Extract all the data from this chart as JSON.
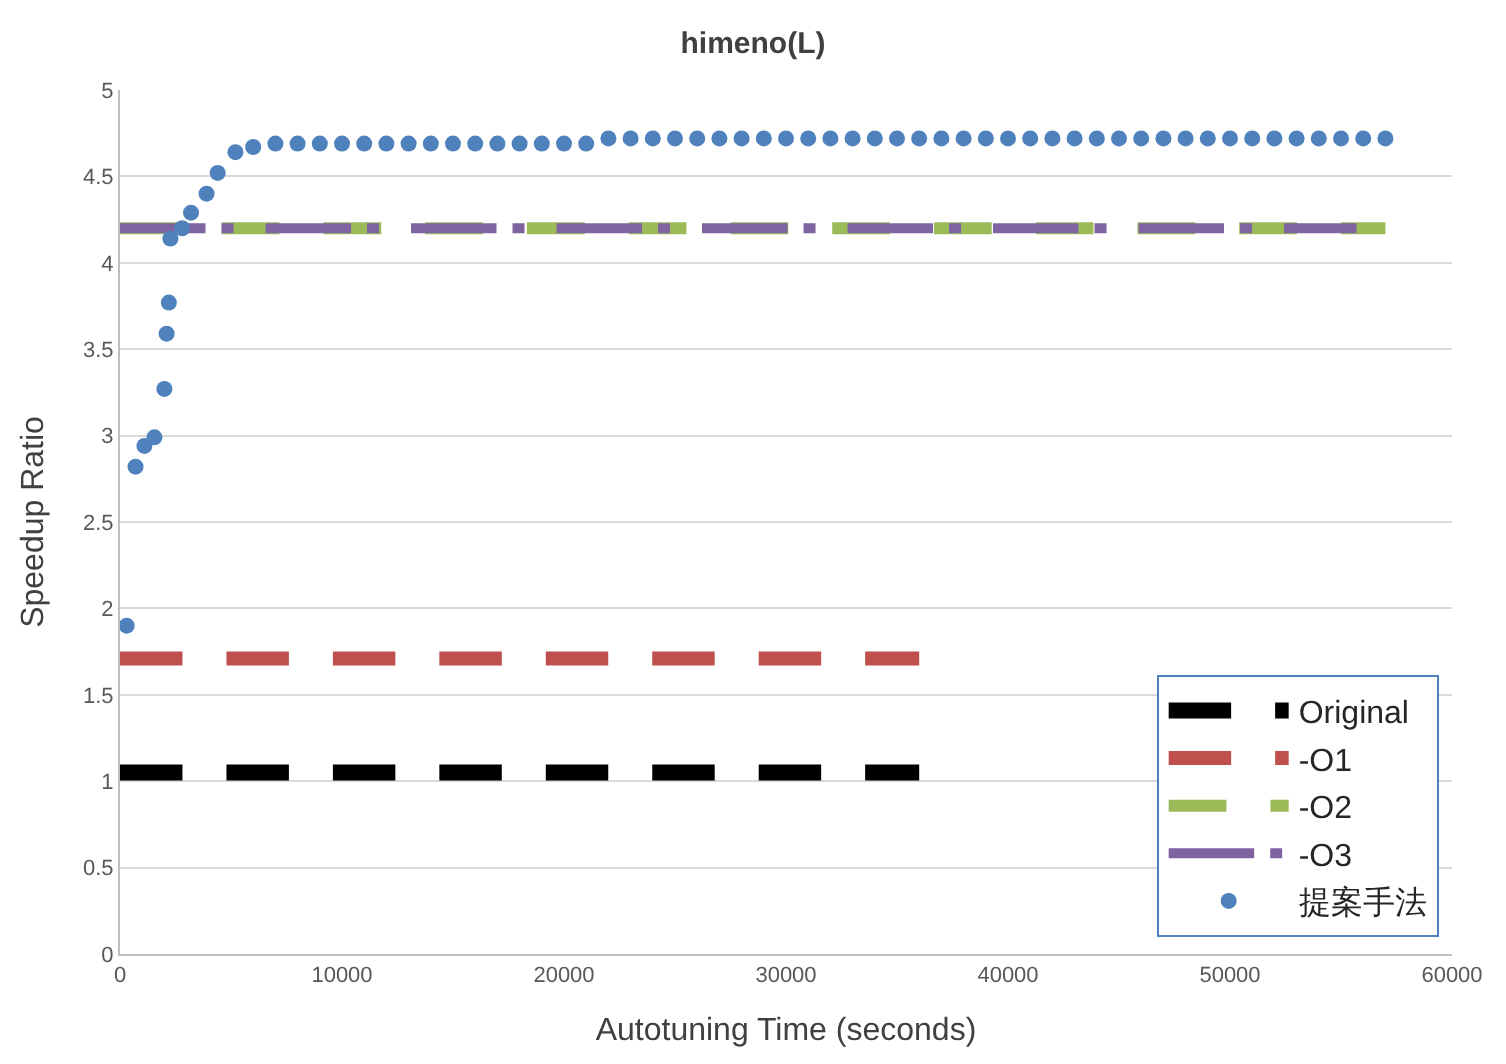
{
  "chart_data": {
    "type": "line",
    "title": "himeno(L)",
    "xlabel": "Autotuning Time (seconds)",
    "ylabel": "Speedup Ratio",
    "xlim": [
      0,
      60000
    ],
    "xticks": [
      0,
      10000,
      20000,
      30000,
      40000,
      50000,
      60000
    ],
    "ylim": [
      0,
      5
    ],
    "yticks": [
      0,
      0.5,
      1,
      1.5,
      2,
      2.5,
      3,
      3.5,
      4,
      4.5,
      5
    ],
    "grid": "y",
    "legend": "bottom right",
    "series": [
      {
        "name": "Original",
        "color": "#000000",
        "line_style": "dashed",
        "marker": "none",
        "x": [
          0,
          36000
        ],
        "values": [
          1.05,
          1.05
        ]
      },
      {
        "name": "-O1",
        "color": "#c0504d",
        "line_style": "dashed",
        "marker": "none",
        "x": [
          0,
          36000
        ],
        "values": [
          1.71,
          1.71
        ]
      },
      {
        "name": "-O2",
        "color": "#9bbb59",
        "line_style": "dashed",
        "marker": "none",
        "x": [
          0,
          57000
        ],
        "values": [
          4.2,
          4.2
        ]
      },
      {
        "name": "-O3",
        "color": "#8064a2",
        "line_style": "dotted",
        "marker": "none",
        "x": [
          0,
          55700
        ],
        "values": [
          4.2,
          4.2
        ]
      },
      {
        "name": "提案手法",
        "type": "scatter",
        "color": "#4f81bd",
        "marker": "circle",
        "x": [
          300,
          700,
          1100,
          1550,
          2000,
          2100,
          2200,
          2270,
          2800,
          3200,
          3900,
          4400,
          5200,
          6000,
          7000,
          8000,
          9000,
          10000,
          11000,
          12000,
          13000,
          14000,
          15000,
          16000,
          17000,
          18000,
          19000,
          20000,
          21000,
          22000,
          23000,
          24000,
          25000,
          26000,
          27000,
          28000,
          29000,
          30000,
          31000,
          32000,
          33000,
          34000,
          35000,
          36000,
          37000,
          38000,
          39000,
          40000,
          41000,
          42000,
          43000,
          44000,
          45000,
          46000,
          47000,
          48000,
          49000,
          50000,
          51000,
          52000,
          53000,
          54000,
          55000,
          56000,
          57000
        ],
        "values": [
          1.9,
          2.82,
          2.94,
          2.99,
          3.27,
          3.59,
          3.77,
          4.14,
          4.2,
          4.29,
          4.4,
          4.52,
          4.64,
          4.67,
          4.69,
          4.69,
          4.69,
          4.69,
          4.69,
          4.69,
          4.69,
          4.69,
          4.69,
          4.69,
          4.69,
          4.69,
          4.69,
          4.69,
          4.69,
          4.72,
          4.72,
          4.72,
          4.72,
          4.72,
          4.72,
          4.72,
          4.72,
          4.72,
          4.72,
          4.72,
          4.72,
          4.72,
          4.72,
          4.72,
          4.72,
          4.72,
          4.72,
          4.72,
          4.72,
          4.72,
          4.72,
          4.72,
          4.72,
          4.72,
          4.72,
          4.72,
          4.72,
          4.72,
          4.72,
          4.72,
          4.72,
          4.72,
          4.72,
          4.72,
          4.72
        ]
      }
    ]
  }
}
